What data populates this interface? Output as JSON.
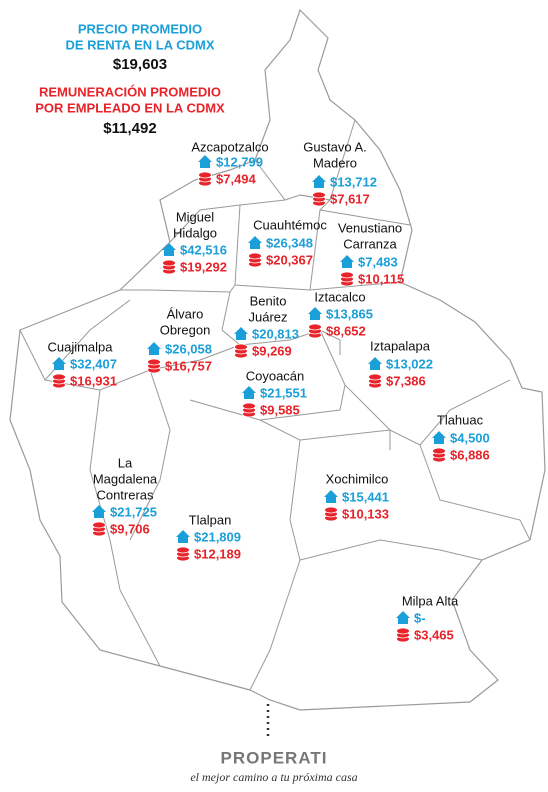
{
  "header": {
    "rent_title": [
      "PRECIO PROMEDIO",
      "DE RENTA EN LA CDMX"
    ],
    "rent_value": "$19,603",
    "wage_title": [
      "REMUNERACIÓN PROMEDIO",
      "POR EMPLEADO EN LA CDMX"
    ],
    "wage_value": "$11,492"
  },
  "districts": [
    {
      "name": [
        "Azcapotzalco"
      ],
      "rent": "$12,799",
      "wage": "$7,494"
    },
    {
      "name": [
        "Gustavo A.",
        "Madero"
      ],
      "rent": "$13,712",
      "wage": "$7,617"
    },
    {
      "name": [
        "Miguel",
        "Hidalgo"
      ],
      "rent": "$42,516",
      "wage": "$19,292"
    },
    {
      "name": [
        "Cuauhtémoc"
      ],
      "rent": "$26,348",
      "wage": "$20,367"
    },
    {
      "name": [
        "Venustiano",
        "Carranza"
      ],
      "rent": "$7,483",
      "wage": "$10,115"
    },
    {
      "name": [
        "Iztacalco"
      ],
      "rent": "$13,865",
      "wage": "$8,652"
    },
    {
      "name": [
        "Benito",
        "Juárez"
      ],
      "rent": "$20,813",
      "wage": "$9,269"
    },
    {
      "name": [
        "Álvaro",
        "Obregon"
      ],
      "rent": "$26,058",
      "wage": "$16,757"
    },
    {
      "name": [
        "Cuajimalpa"
      ],
      "rent": "$32,407",
      "wage": "$16,931"
    },
    {
      "name": [
        "Iztapalapa"
      ],
      "rent": "$13,022",
      "wage": "$7,386"
    },
    {
      "name": [
        "Coyoacán"
      ],
      "rent": "$21,551",
      "wage": "$9,585"
    },
    {
      "name": [
        "Tlahuac"
      ],
      "rent": "$4,500",
      "wage": "$6,886"
    },
    {
      "name": [
        "Xochimilco"
      ],
      "rent": "$15,441",
      "wage": "$10,133"
    },
    {
      "name": [
        "La",
        "Magdalena",
        "Contreras"
      ],
      "rent": "$21,725",
      "wage": "$9,706"
    },
    {
      "name": [
        "Tlalpan"
      ],
      "rent": "$21,809",
      "wage": "$12,189"
    },
    {
      "name": [
        "Milpa Alta"
      ],
      "rent": "$-",
      "wage": "$3,465"
    }
  ],
  "footer": {
    "brand": "PROPERATI",
    "tagline": "el mejor camino a tu próxima casa"
  }
}
